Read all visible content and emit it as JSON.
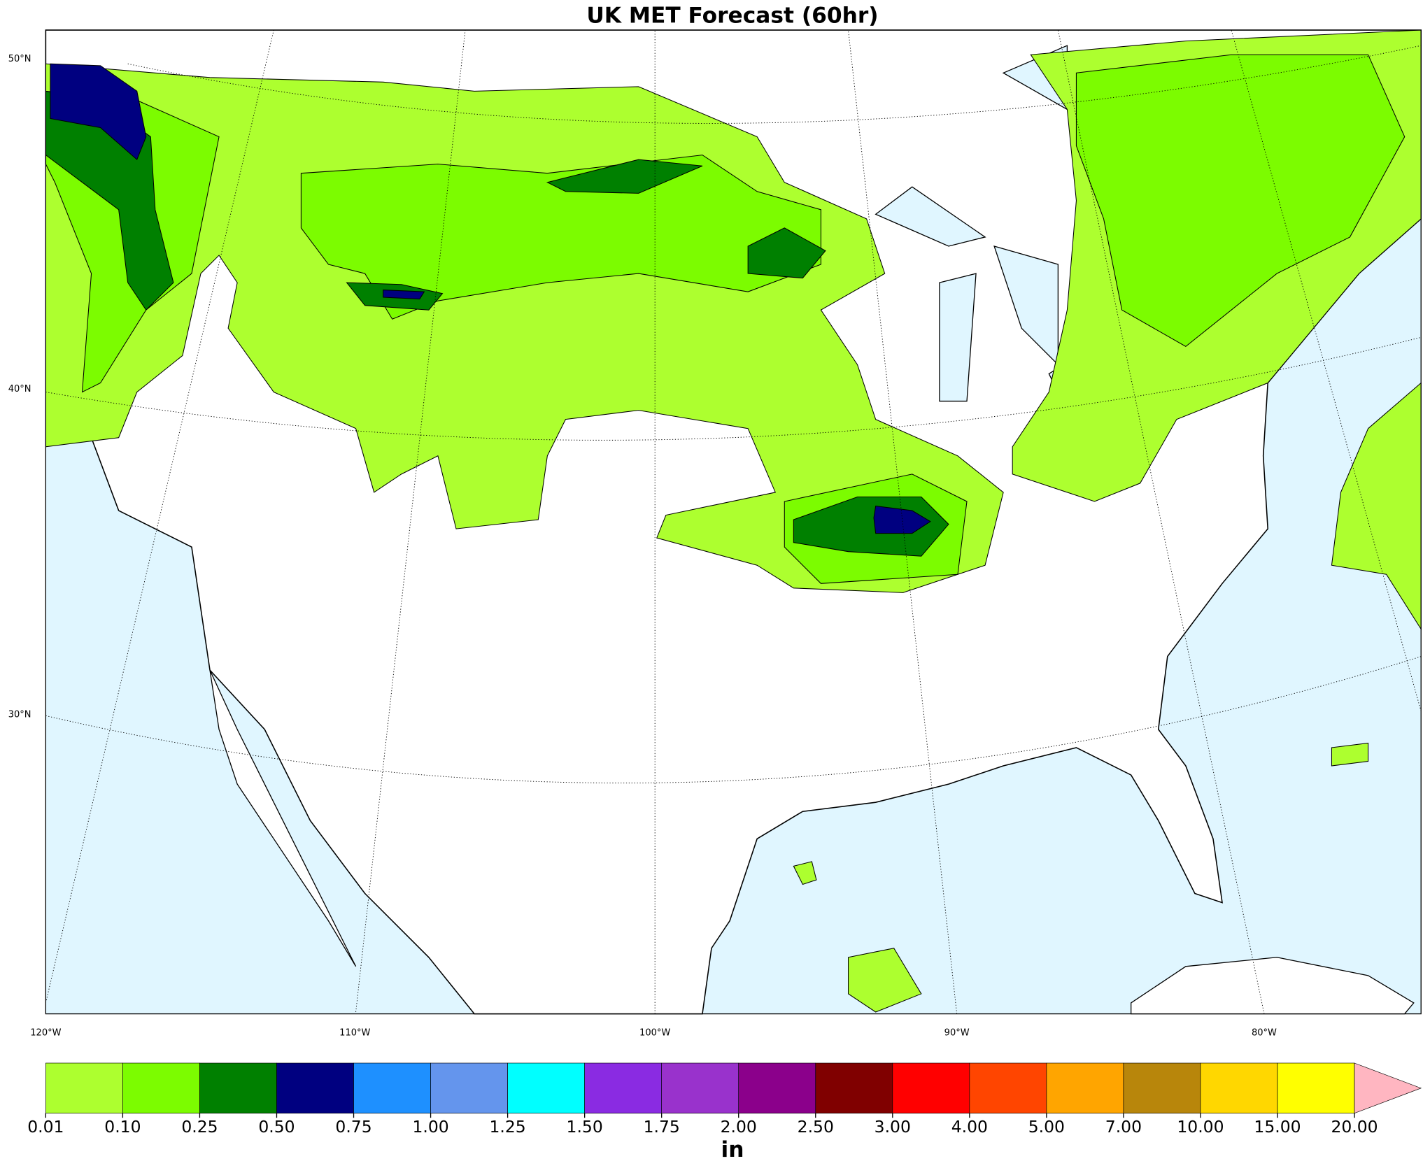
{
  "title": "UK MET Forecast (60hr)",
  "map": {
    "lat_labels": [
      "50°N",
      "40°N",
      "30°N"
    ],
    "lon_labels": [
      "120°W",
      "110°W",
      "100°W",
      "90°W",
      "80°W"
    ]
  },
  "colorbar": {
    "ticks": [
      "0.01",
      "0.10",
      "0.25",
      "0.50",
      "0.75",
      "1.00",
      "1.25",
      "1.50",
      "1.75",
      "2.00",
      "2.50",
      "3.00",
      "4.00",
      "5.00",
      "7.00",
      "10.00",
      "15.00",
      "20.00"
    ],
    "colors": [
      "#adff2f",
      "#7cfc00",
      "#008000",
      "#000080",
      "#1e90ff",
      "#6495ed",
      "#00ffff",
      "#8a2be2",
      "#9932cc",
      "#8b008b",
      "#800000",
      "#ff0000",
      "#ff4500",
      "#ffa500",
      "#b8860b",
      "#ffd700",
      "#ffff00"
    ],
    "extend_color": "#ffb6c1",
    "unit": "in"
  }
}
